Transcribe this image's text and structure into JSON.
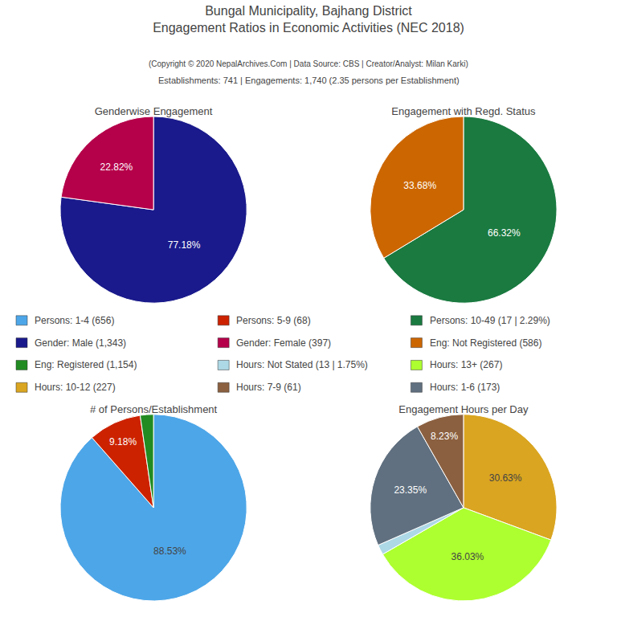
{
  "title": "Bungal Municipality, Bajhang District\nEngagement Ratios in Economic Activities (NEC 2018)",
  "subtitle": "(Copyright © 2020 NepalArchives.Com | Data Source: CBS | Creator/Analyst: Milan Karki)",
  "annotations": [
    "Establishments: 741 | Engagements: 1,740 (2.35 persons per Establishment)"
  ],
  "series": [
    {
      "name": "Persons: 1-4 (656)",
      "color": "#4DA6E8"
    },
    {
      "name": "Persons: 5-9 (68)",
      "color": "#CC2200"
    },
    {
      "name": "Persons: 10-49 (17 | 2.29%)",
      "color": "#1A7A40"
    },
    {
      "name": "Gender: Male (1,343)",
      "color": "#1A1A8C"
    },
    {
      "name": "Gender: Female (397)",
      "color": "#B5004A"
    },
    {
      "name": "Eng: Not Registered (586)",
      "color": "#CC6600"
    },
    {
      "name": "Eng: Registered (1,154)",
      "color": "#228B22"
    },
    {
      "name": "Hours: Not Stated (13 | 1.75%)",
      "color": "#ADD8E6"
    },
    {
      "name": "Hours: 13+ (267)",
      "color": "#ADFF2F"
    },
    {
      "name": "Hours: 10-12 (227)",
      "color": "#DAA520"
    },
    {
      "name": "Hours: 7-9 (61)",
      "color": "#8B6040"
    },
    {
      "name": "Hours: 1-6 (173)",
      "color": "#607080"
    }
  ],
  "chart_data": [
    {
      "type": "pie",
      "title": "Genderwise Engagement",
      "values": [
        77.18,
        22.82
      ],
      "colors": [
        "#1A1A8C",
        "#B5004A"
      ],
      "value_labels": [
        "77.18%",
        "22.82%"
      ],
      "data_labels": true
    },
    {
      "type": "pie",
      "title": "Engagement with Regd. Status",
      "values": [
        66.32,
        33.68
      ],
      "colors": [
        "#1A7A40",
        "#CC6600"
      ],
      "value_labels": [
        "66.32%",
        "33.68%"
      ],
      "data_labels": true
    },
    {
      "type": "pie",
      "title": "# of Persons/Establishment",
      "values": [
        88.53,
        9.18,
        2.29
      ],
      "colors": [
        "#4DA6E8",
        "#CC2200",
        "#228B22"
      ],
      "value_labels": [
        "88.53%",
        "9.18%",
        null
      ],
      "data_labels": true
    },
    {
      "type": "pie",
      "title": "Engagement Hours per Day",
      "values": [
        30.63,
        36.03,
        1.75,
        23.35,
        8.23
      ],
      "colors": [
        "#DAA520",
        "#ADFF2F",
        "#ADD8E6",
        "#607080",
        "#8B6040"
      ],
      "value_labels": [
        "30.63%",
        "36.03%",
        null,
        "23.35%",
        "8.23%"
      ],
      "data_labels": true
    }
  ]
}
